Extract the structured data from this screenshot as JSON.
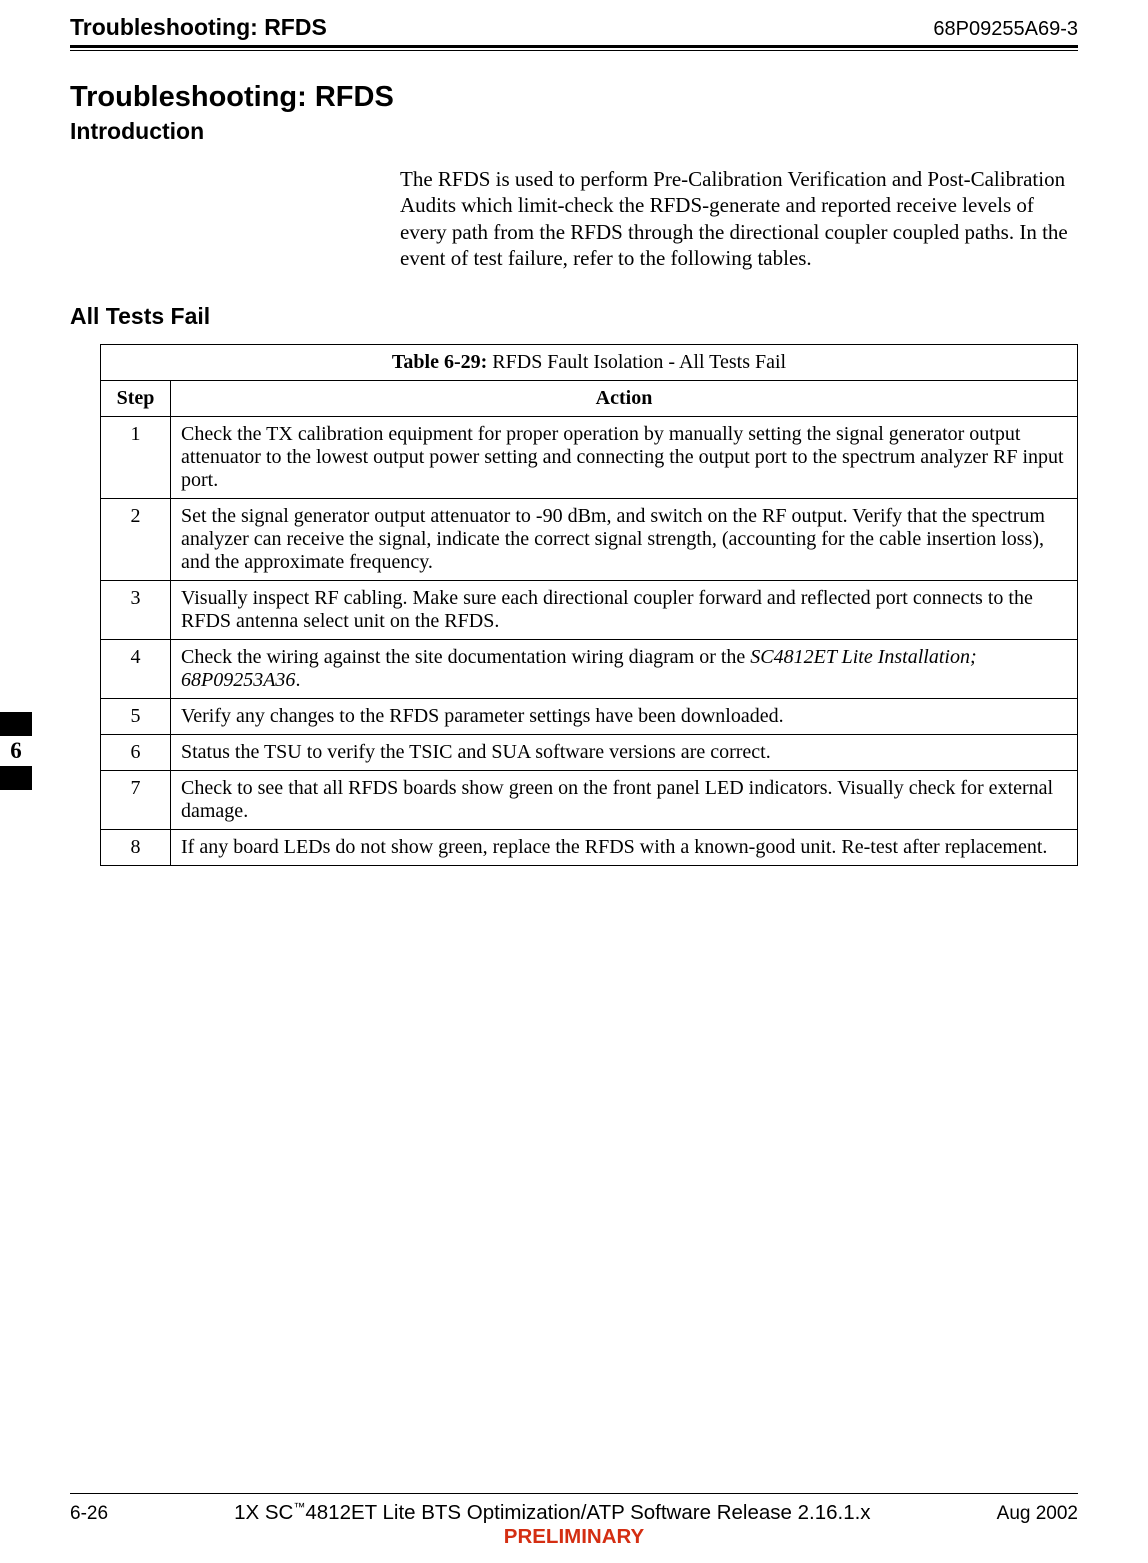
{
  "header": {
    "left": "Troubleshooting: RFDS",
    "right": "68P09255A69-3"
  },
  "title": "Troubleshooting: RFDS",
  "section_intro_head": "Introduction",
  "intro_paragraph": "The RFDS is used to perform Pre-Calibration Verification and Post-Calibration Audits which  limit-check the RFDS-generate and reported receive levels of every path from the RFDS through the directional coupler coupled paths. In the event of test failure, refer to the following tables.",
  "section_all_tests_head": "All Tests Fail",
  "table": {
    "caption_bold": "Table 6-29:",
    "caption_rest": " RFDS Fault Isolation - All Tests Fail",
    "columns": {
      "step": "Step",
      "action": "Action"
    },
    "rows": [
      {
        "step": "1",
        "action": "Check the TX calibration equipment for proper operation by manually setting the signal generator output attenuator to the lowest output power setting and connecting the output port to the spectrum analyzer RF input port."
      },
      {
        "step": "2",
        "action": "Set the signal generator output attenuator to -90 dBm, and switch on the RF output. Verify that the spectrum analyzer can receive the signal, indicate the correct signal strength, (accounting for the cable insertion loss), and the approximate frequency."
      },
      {
        "step": "3",
        "action": "Visually inspect RF cabling. Make sure each directional coupler forward and reflected port connects to the RFDS antenna select unit on the RFDS."
      },
      {
        "step": "4",
        "action_pre": "Check the wiring against the site documentation wiring diagram or the ",
        "action_italic": "SC4812ET Lite Installation; 68P09253A36",
        "action_post": "."
      },
      {
        "step": "5",
        "action": "Verify any changes to the RFDS parameter settings have been downloaded."
      },
      {
        "step": "6",
        "action": "Status the TSU to verify the TSIC and SUA software versions are correct."
      },
      {
        "step": "7",
        "action": "Check to see that all RFDS boards show green on the front panel LED indicators. Visually check for external damage."
      },
      {
        "step": "8",
        "action": "If any board LEDs do not show green, replace the RFDS with a known-good unit. Re-test after replacement."
      }
    ]
  },
  "side_tab": "6",
  "footer": {
    "left": "6-26",
    "center_pre": "1X SC",
    "center_tm": "™",
    "center_post": "4812ET Lite BTS Optimization/ATP Software Release 2.16.1.x",
    "right": "Aug 2002",
    "sub": "PRELIMINARY"
  }
}
